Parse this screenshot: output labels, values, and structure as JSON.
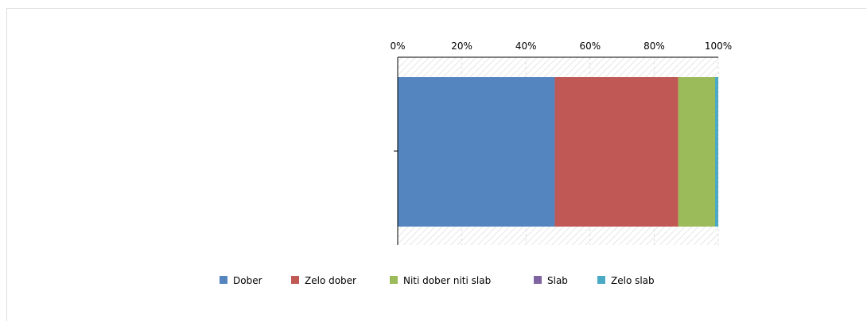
{
  "chart_data": {
    "type": "bar",
    "orientation": "horizontal",
    "stacked": true,
    "normalized_percent": true,
    "categories": [
      ""
    ],
    "series": [
      {
        "name": "Dober",
        "values": [
          49
        ],
        "color": "#5585bf"
      },
      {
        "name": "Zelo dober",
        "values": [
          38.5
        ],
        "color": "#c05855"
      },
      {
        "name": "Niti dober niti slab",
        "values": [
          11.5
        ],
        "color": "#9bbb5b"
      },
      {
        "name": "Slab",
        "values": [
          0
        ],
        "color": "#8064a2"
      },
      {
        "name": "Zelo slab",
        "values": [
          1
        ],
        "color": "#4aaac5"
      }
    ],
    "xlim": [
      0,
      100
    ],
    "xticks": [
      0,
      20,
      40,
      60,
      80,
      100
    ],
    "xtick_labels": [
      "0%",
      "20%",
      "40%",
      "60%",
      "80%",
      "100%"
    ],
    "x_axis_position": "top",
    "grid": true,
    "legend_position": "bottom"
  }
}
